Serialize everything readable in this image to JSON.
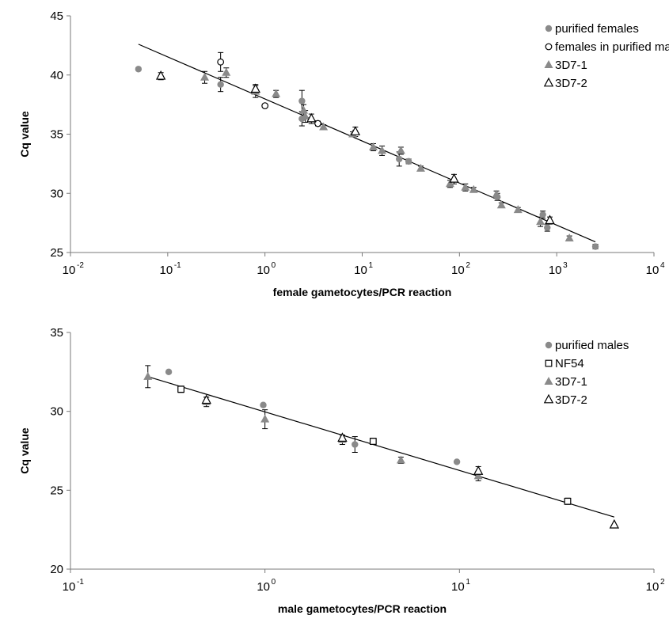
{
  "chart_data": [
    {
      "type": "scatter",
      "xscale": "log",
      "x_range": [
        0.01,
        10000
      ],
      "ylim": [
        25,
        45
      ],
      "y_ticks": [
        25,
        30,
        35,
        40,
        45
      ],
      "x_tick_labels": [
        {
          "base": "10",
          "exp": "-2"
        },
        {
          "base": "10",
          "exp": "-1"
        },
        {
          "base": "10",
          "exp": "0"
        },
        {
          "base": "10",
          "exp": "1"
        },
        {
          "base": "10",
          "exp": "2"
        },
        {
          "base": "10",
          "exp": "3"
        },
        {
          "base": "10",
          "exp": "4"
        }
      ],
      "xlabel": "female gametocytes/PCR reaction",
      "ylabel": "Cq value",
      "grid": false,
      "legend_position": "top-right",
      "series": [
        {
          "name": "purified females",
          "marker": "circle-filled",
          "color": "#8a8a8a",
          "points": [
            {
              "x": 0.05,
              "y": 40.5,
              "err": 0.1
            },
            {
              "x": 0.35,
              "y": 39.2,
              "err": 0.6
            },
            {
              "x": 2.4,
              "y": 37.8,
              "err": 0.9
            },
            {
              "x": 2.4,
              "y": 36.3,
              "err": 0.6
            },
            {
              "x": 24,
              "y": 32.9,
              "err": 0.6
            },
            {
              "x": 30,
              "y": 32.7,
              "err": 0.2
            },
            {
              "x": 245,
              "y": 29.7,
              "err": 0.3
            },
            {
              "x": 720,
              "y": 28.2,
              "err": 0.3
            },
            {
              "x": 800,
              "y": 27.1,
              "err": 0.3
            },
            {
              "x": 2500,
              "y": 25.5,
              "err": 0.2
            }
          ]
        },
        {
          "name": "females in purified males",
          "marker": "circle-open",
          "color": "#000000",
          "points": [
            {
              "x": 0.35,
              "y": 41.1,
              "err": 0.8
            },
            {
              "x": 1.0,
              "y": 37.4,
              "err": 0.0
            },
            {
              "x": 3.5,
              "y": 35.9,
              "err": 0.2
            }
          ]
        },
        {
          "name": "3D7-1",
          "marker": "triangle-filled",
          "color": "#8a8a8a",
          "points": [
            {
              "x": 0.24,
              "y": 39.8,
              "err": 0.5
            },
            {
              "x": 0.4,
              "y": 40.2,
              "err": 0.4
            },
            {
              "x": 0.8,
              "y": 38.6,
              "err": 0.5
            },
            {
              "x": 1.3,
              "y": 38.4,
              "err": 0.3
            },
            {
              "x": 2.5,
              "y": 37.0,
              "err": 0.5
            },
            {
              "x": 2.6,
              "y": 36.5,
              "err": 0.5
            },
            {
              "x": 4.0,
              "y": 35.6,
              "err": 0.2
            },
            {
              "x": 8.0,
              "y": 35.0,
              "err": 0.2
            },
            {
              "x": 13,
              "y": 33.9,
              "err": 0.3
            },
            {
              "x": 16,
              "y": 33.6,
              "err": 0.4
            },
            {
              "x": 25,
              "y": 33.6,
              "err": 0.3
            },
            {
              "x": 40,
              "y": 32.1,
              "err": 0.2
            },
            {
              "x": 80,
              "y": 30.8,
              "err": 0.3
            },
            {
              "x": 115,
              "y": 30.5,
              "err": 0.3
            },
            {
              "x": 140,
              "y": 30.3,
              "err": 0.2
            },
            {
              "x": 240,
              "y": 29.9,
              "err": 0.3
            },
            {
              "x": 270,
              "y": 29.0,
              "err": 0.2
            },
            {
              "x": 400,
              "y": 28.6,
              "err": 0.2
            },
            {
              "x": 680,
              "y": 27.6,
              "err": 0.4
            },
            {
              "x": 1350,
              "y": 26.2,
              "err": 0.2
            }
          ]
        },
        {
          "name": "3D7-2",
          "marker": "triangle-open",
          "color": "#000000",
          "points": [
            {
              "x": 0.085,
              "y": 39.9,
              "err": 0.3
            },
            {
              "x": 0.8,
              "y": 38.8,
              "err": 0.4
            },
            {
              "x": 3.0,
              "y": 36.3,
              "err": 0.4
            },
            {
              "x": 8.5,
              "y": 35.2,
              "err": 0.4
            },
            {
              "x": 88,
              "y": 31.2,
              "err": 0.4
            },
            {
              "x": 850,
              "y": 27.7,
              "err": 0.3
            }
          ]
        },
        {
          "name": "",
          "type": "line",
          "color": "#000000",
          "points": [
            {
              "x": 0.05,
              "y": 42.6
            },
            {
              "x": 2500,
              "y": 25.9
            }
          ]
        }
      ]
    },
    {
      "type": "scatter",
      "xscale": "log",
      "x_range": [
        0.1,
        100
      ],
      "ylim": [
        20,
        35
      ],
      "y_ticks": [
        20,
        25,
        30,
        35
      ],
      "x_tick_labels": [
        {
          "base": "10",
          "exp": "-1"
        },
        {
          "base": "10",
          "exp": "0"
        },
        {
          "base": "10",
          "exp": "1"
        },
        {
          "base": "10",
          "exp": "2"
        }
      ],
      "xlabel": "male gametocytes/PCR reaction",
      "ylabel": "Cq value",
      "grid": false,
      "legend_position": "top-right",
      "series": [
        {
          "name": "purified males",
          "marker": "circle-filled",
          "color": "#8a8a8a",
          "points": [
            {
              "x": 0.32,
              "y": 32.5,
              "err": 0.0
            },
            {
              "x": 0.98,
              "y": 30.4,
              "err": 0.0
            },
            {
              "x": 2.9,
              "y": 27.9,
              "err": 0.5
            },
            {
              "x": 9.7,
              "y": 26.8,
              "err": 0.0
            }
          ]
        },
        {
          "name": "NF54",
          "marker": "square-open",
          "color": "#000000",
          "points": [
            {
              "x": 0.37,
              "y": 31.4,
              "err": 0.2
            },
            {
              "x": 3.6,
              "y": 28.1,
              "err": 0.2
            },
            {
              "x": 36,
              "y": 24.3,
              "err": 0.2
            }
          ]
        },
        {
          "name": "3D7-1",
          "marker": "triangle-filled",
          "color": "#8a8a8a",
          "points": [
            {
              "x": 0.25,
              "y": 32.2,
              "err": 0.7
            },
            {
              "x": 0.5,
              "y": 30.6,
              "err": 0.3
            },
            {
              "x": 1.0,
              "y": 29.5,
              "err": 0.6
            },
            {
              "x": 2.5,
              "y": 28.2,
              "err": 0.3
            },
            {
              "x": 5.0,
              "y": 26.9,
              "err": 0.2
            },
            {
              "x": 12.5,
              "y": 25.9,
              "err": 0.3
            }
          ]
        },
        {
          "name": "3D7-2",
          "marker": "triangle-open",
          "color": "#000000",
          "points": [
            {
              "x": 0.5,
              "y": 30.7,
              "err": 0.2
            },
            {
              "x": 2.5,
              "y": 28.3,
              "err": 0.2
            },
            {
              "x": 12.5,
              "y": 26.2,
              "err": 0.3
            },
            {
              "x": 62.5,
              "y": 22.8,
              "err": 0.0
            }
          ]
        },
        {
          "name": "",
          "type": "line",
          "color": "#000000",
          "points": [
            {
              "x": 0.25,
              "y": 32.2
            },
            {
              "x": 62.5,
              "y": 23.3
            }
          ]
        }
      ]
    }
  ]
}
